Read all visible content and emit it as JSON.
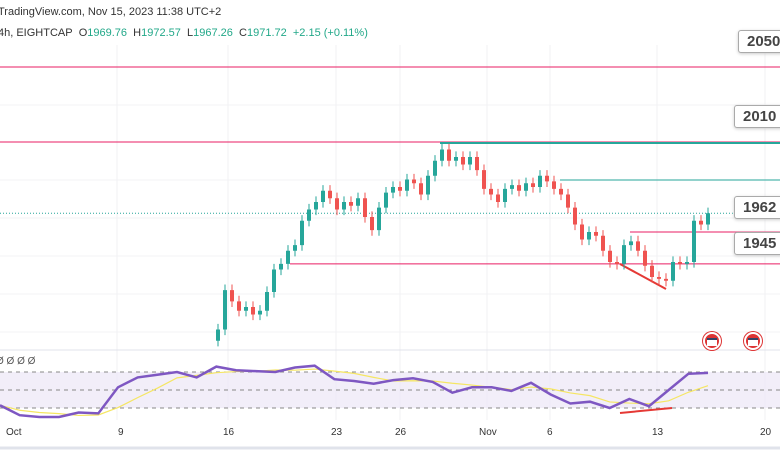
{
  "header": {
    "source": "TradingView.com, Nov 15, 2023 11:38 UTC+2",
    "symbol": "4h, EIGHTCAP",
    "o_label": "O",
    "o": "1969.76",
    "h_label": "H",
    "h": "1972.57",
    "l_label": "L",
    "l": "1967.26",
    "c_label": "C",
    "c": "1971.72",
    "change": "+2.15 (+0.11%)"
  },
  "rsi_values_text": "Ø Ø Ø Ø",
  "colors": {
    "up": "#26a69a",
    "down": "#ef5350",
    "rsi": "#7e57c2",
    "ma": "#f5e663",
    "level": "#e91e63"
  },
  "chart_data": {
    "type": "candlestick",
    "price_scale": {
      "top": 2066,
      "bottom": 1892
    },
    "closes": [
      1910,
      1931,
      1925,
      1920,
      1922,
      1918,
      1920,
      1930,
      1942,
      1945,
      1952,
      1955,
      1968,
      1974,
      1978,
      1984,
      1980,
      1974,
      1978,
      1976,
      1980,
      1970,
      1963,
      1975,
      1983,
      1986,
      1984,
      1990,
      1988,
      1982,
      1992,
      2000,
      2006,
      2000,
      2002,
      1998,
      2002,
      1995,
      1985,
      1982,
      1978,
      1985,
      1987,
      1984,
      1988,
      1986,
      1992,
      1989,
      1985,
      1982,
      1975,
      1966,
      1958,
      1962,
      1960,
      1952,
      1946,
      1945,
      1955,
      1957,
      1952,
      1944,
      1938,
      1937,
      1936,
      1946,
      1945,
      1946,
      1968,
      1966,
      1972
    ],
    "current_price": 1972,
    "levels": [
      {
        "label": "2050",
        "value": 2050
      },
      {
        "label": "2010",
        "value": 2010
      },
      {
        "label": "1962",
        "value": 1962
      },
      {
        "label": "1945",
        "value": 1945
      }
    ],
    "x_ticks": [
      "Oct",
      "9",
      "16",
      "23",
      "26",
      "Nov",
      "6",
      "13",
      "20"
    ],
    "rsi": {
      "values": [
        33,
        22,
        20,
        20,
        25,
        24,
        53,
        64,
        67,
        70,
        64,
        76,
        72,
        71,
        70,
        75,
        77,
        62,
        60,
        57,
        61,
        63,
        59,
        47,
        53,
        53,
        49,
        58,
        45,
        35,
        37,
        30,
        40,
        32,
        50,
        68,
        69
      ],
      "levels": [
        70,
        50,
        30
      ]
    }
  }
}
